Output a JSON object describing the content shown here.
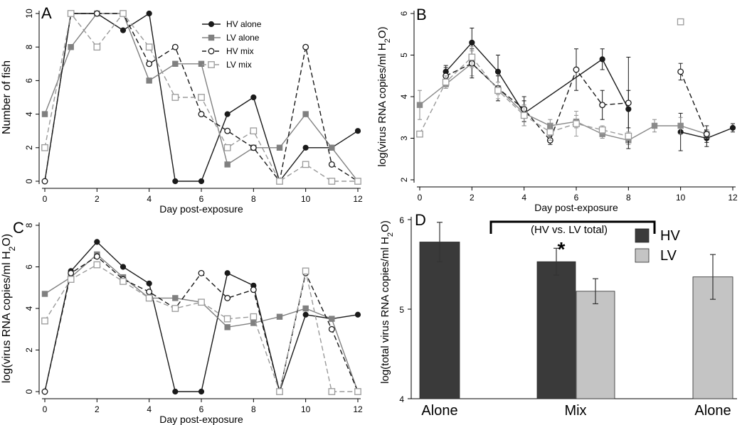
{
  "chart_data": [
    {
      "panel": "A",
      "type": "line",
      "xlabel": "Day post-exposure",
      "ylabel": "Number of fish",
      "xlim": [
        0,
        12
      ],
      "ylim": [
        0,
        10
      ],
      "xticks": [
        "0",
        "2",
        "4",
        "6",
        "8",
        "10",
        "12"
      ],
      "yticks": [
        "0",
        "2",
        "4",
        "6",
        "8",
        "10"
      ],
      "legend_position": "top-right",
      "series": [
        {
          "name": "HV alone",
          "color": "#1a1a1a",
          "dash": "solid",
          "marker": "filled-diamond",
          "x": [
            0,
            1,
            2,
            3,
            4,
            5,
            6,
            7,
            8,
            9,
            10,
            11,
            12
          ],
          "y": [
            0,
            10,
            10,
            9,
            10,
            0,
            0,
            4,
            5,
            0,
            2,
            2,
            3
          ]
        },
        {
          "name": "LV alone",
          "color": "#808080",
          "dash": "solid",
          "marker": "filled-square",
          "x": [
            0,
            1,
            2,
            3,
            4,
            5,
            6,
            7,
            8,
            9,
            10,
            11,
            12
          ],
          "y": [
            4,
            8,
            10,
            10,
            6,
            7,
            7,
            1,
            2,
            2,
            4,
            2,
            0
          ]
        },
        {
          "name": "HV mix",
          "color": "#1a1a1a",
          "dash": "dashed",
          "marker": "open-circle",
          "x": [
            0,
            1,
            2,
            3,
            4,
            5,
            6,
            7,
            8,
            9,
            10,
            11,
            12
          ],
          "y": [
            0,
            10,
            10,
            10,
            7,
            8,
            4,
            3,
            2,
            0,
            8,
            1,
            0
          ]
        },
        {
          "name": "LV mix",
          "color": "#9a9a9a",
          "dash": "dashed",
          "marker": "open-square",
          "x": [
            0,
            1,
            2,
            3,
            4,
            5,
            6,
            7,
            8,
            9,
            10,
            11,
            12
          ],
          "y": [
            2,
            10,
            8,
            10,
            8,
            5,
            5,
            2,
            3,
            0,
            1,
            0,
            0
          ]
        }
      ]
    },
    {
      "panel": "B",
      "type": "line",
      "xlabel": "Day post-exposure",
      "ylabel": "log(virus RNA copies/ml H2O)",
      "xlim": [
        0,
        12
      ],
      "ylim": [
        2,
        6
      ],
      "xticks": [
        "0",
        "2",
        "4",
        "6",
        "8",
        "10",
        "12"
      ],
      "yticks": [
        "2",
        "3",
        "4",
        "5",
        "6"
      ],
      "series": [
        {
          "name": "HV alone",
          "color": "#1a1a1a",
          "dash": "solid",
          "marker": "filled-diamond",
          "x": [
            1,
            2,
            3,
            4,
            7,
            8
          ],
          "y": [
            4.6,
            5.3,
            4.6,
            3.6,
            4.9,
            3.7
          ],
          "err": [
            0.15,
            0.35,
            0.4,
            0.3,
            0.25,
            0.45
          ],
          "x2": [
            10,
            11,
            12
          ],
          "y2": [
            3.15,
            3.0,
            3.25
          ],
          "err2": [
            0.45,
            0.2,
            0.1
          ]
        },
        {
          "name": "LV alone",
          "color": "#8a8a8a",
          "dash": "solid",
          "marker": "filled-square",
          "x": [
            0,
            1,
            2,
            3,
            4,
            5,
            6,
            7,
            8,
            9,
            10,
            11
          ],
          "y": [
            3.8,
            4.3,
            4.8,
            4.2,
            3.6,
            3.3,
            3.4,
            3.1,
            2.95,
            3.3,
            3.3,
            3.1
          ],
          "err": [
            0.35,
            0.1,
            0.3,
            0.15,
            0.2,
            0.15,
            0.15,
            0.1,
            0.1,
            0.15,
            0.2,
            0.1
          ]
        },
        {
          "name": "HV mix",
          "color": "#1a1a1a",
          "dash": "dashed",
          "marker": "open-circle",
          "x": [
            1,
            2,
            3,
            4,
            5,
            6,
            7,
            8
          ],
          "y": [
            4.5,
            4.8,
            4.2,
            3.7,
            2.95,
            4.65,
            3.8,
            3.85
          ],
          "err": [
            0.2,
            0.35,
            0.3,
            0.3,
            0.1,
            0.5,
            0.35,
            1.1
          ],
          "x2": [
            10,
            11
          ],
          "y2": [
            4.6,
            3.1
          ],
          "err2": [
            0.2,
            0.2
          ]
        },
        {
          "name": "LV mix",
          "color": "#9a9a9a",
          "dash": "dashed",
          "marker": "open-square",
          "x": [
            0,
            1,
            2,
            3,
            4,
            5,
            6,
            7,
            8
          ],
          "y": [
            3.1,
            4.35,
            4.95,
            4.15,
            3.55,
            3.15,
            3.35,
            3.2,
            3.05
          ],
          "err": [
            0.05,
            0.15,
            0.25,
            0.2,
            0.25,
            0.2,
            0.3,
            0.1,
            0.1
          ],
          "x2": [
            10
          ],
          "y2": [
            5.8
          ],
          "err2": [
            0
          ]
        }
      ]
    },
    {
      "panel": "C",
      "type": "line",
      "xlabel": "Day post-exposure",
      "ylabel": "log(virus RNA copies/ml H2O)",
      "xlim": [
        0,
        12
      ],
      "ylim": [
        0,
        8
      ],
      "xticks": [
        "0",
        "2",
        "4",
        "6",
        "8",
        "10",
        "12"
      ],
      "yticks": [
        "0",
        "2",
        "4",
        "6",
        "8"
      ],
      "series": [
        {
          "name": "HV alone",
          "color": "#1a1a1a",
          "dash": "solid",
          "marker": "filled-diamond",
          "x": [
            0,
            1,
            2,
            3,
            4,
            5,
            6,
            7,
            8,
            9,
            10,
            11,
            12
          ],
          "y": [
            0,
            5.8,
            7.2,
            6.0,
            5.2,
            0,
            0,
            5.7,
            5.1,
            0,
            3.7,
            3.5,
            3.7
          ]
        },
        {
          "name": "LV alone",
          "color": "#808080",
          "dash": "solid",
          "marker": "filled-square",
          "x": [
            0,
            1,
            2,
            3,
            4,
            5,
            6,
            7,
            8,
            9,
            10,
            11,
            12
          ],
          "y": [
            4.7,
            5.5,
            6.6,
            5.5,
            4.5,
            4.5,
            4.3,
            3.1,
            3.3,
            3.6,
            4.0,
            3.5,
            0
          ]
        },
        {
          "name": "HV mix",
          "color": "#1a1a1a",
          "dash": "dashed",
          "marker": "open-circle",
          "x": [
            0,
            1,
            2,
            3,
            4,
            5,
            6,
            7,
            8,
            9,
            10,
            11,
            12
          ],
          "y": [
            0,
            5.7,
            6.5,
            5.4,
            4.8,
            4.0,
            5.7,
            4.5,
            4.9,
            0,
            5.7,
            3.0,
            0
          ]
        },
        {
          "name": "LV mix",
          "color": "#9a9a9a",
          "dash": "dashed",
          "marker": "open-square",
          "x": [
            0,
            1,
            2,
            3,
            4,
            5,
            6,
            7,
            8,
            9,
            10,
            11,
            12
          ],
          "y": [
            3.4,
            5.4,
            6.1,
            5.3,
            4.5,
            4.0,
            4.3,
            3.5,
            3.6,
            0,
            5.8,
            0,
            0
          ]
        }
      ]
    },
    {
      "panel": "D",
      "type": "bar",
      "ylabel": "log(total virus RNA copies/ml H2O)",
      "ylim": [
        4,
        6
      ],
      "yticks": [
        "4",
        "5",
        "6"
      ],
      "categories": [
        "Alone",
        "Mix",
        "Alone"
      ],
      "bracket_label": "(HV vs. LV total)",
      "significance": "*",
      "legend_position": "top-right",
      "series": [
        {
          "name": "HV",
          "color": "#3a3a3a"
        },
        {
          "name": "LV",
          "color": "#c4c4c4"
        }
      ],
      "bars": [
        {
          "group": "Alone",
          "series": "HV",
          "value": 5.75,
          "err": 0.22
        },
        {
          "group": "Mix",
          "series": "HV",
          "value": 5.53,
          "err": 0.15
        },
        {
          "group": "Mix",
          "series": "LV",
          "value": 5.2,
          "err": 0.14
        },
        {
          "group": "Alone",
          "series": "LV",
          "value": 5.36,
          "err": 0.25
        }
      ]
    }
  ]
}
